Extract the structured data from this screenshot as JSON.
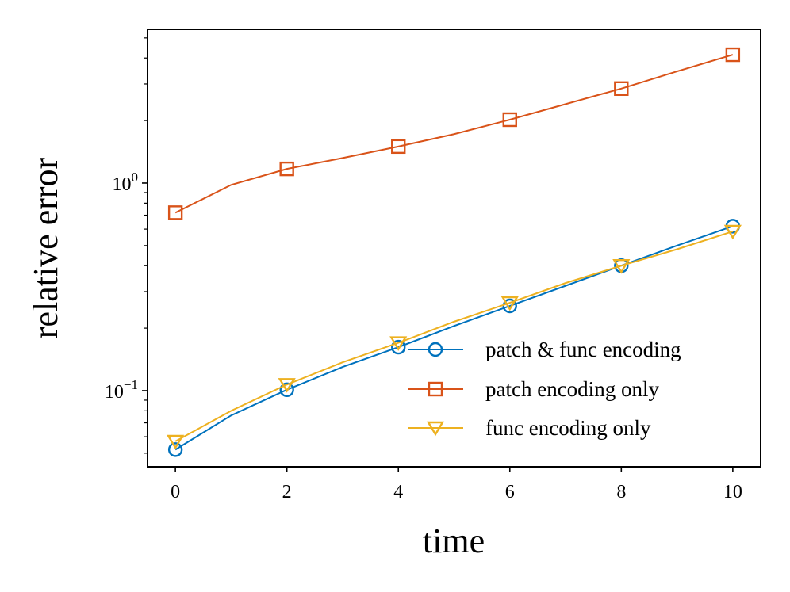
{
  "chart_data": {
    "type": "line",
    "title": "",
    "xlabel": "time",
    "ylabel": "relative error",
    "xscale": "linear",
    "yscale": "log",
    "xlim": [
      -0.5,
      10.5
    ],
    "ylim": [
      0.043,
      5.5
    ],
    "xticks": [
      0,
      2,
      4,
      6,
      8,
      10
    ],
    "xtick_labels": [
      "0",
      "2",
      "4",
      "6",
      "8",
      "10"
    ],
    "yticks_major": [
      {
        "value": 0.1,
        "base": "10",
        "exponent": "−1"
      },
      {
        "value": 1,
        "base": "10",
        "exponent": "0"
      }
    ],
    "grid": false,
    "legend_position": "lower-right",
    "x": [
      0,
      1,
      2,
      3,
      4,
      5,
      6,
      7,
      8,
      9,
      10
    ],
    "series": [
      {
        "name": "patch & func encoding",
        "color": "#0072bd",
        "marker": "circle",
        "marker_every": 2,
        "values": [
          0.052,
          0.076,
          0.101,
          0.13,
          0.162,
          0.205,
          0.256,
          0.32,
          0.4,
          0.5,
          0.62
        ]
      },
      {
        "name": "patch encoding only",
        "color": "#d95319",
        "marker": "square",
        "marker_every": 2,
        "values": [
          0.72,
          0.98,
          1.17,
          1.32,
          1.5,
          1.72,
          2.02,
          2.4,
          2.85,
          3.45,
          4.15
        ]
      },
      {
        "name": "func encoding only",
        "color": "#edb120",
        "marker": "triangle-down",
        "marker_every": 2,
        "values": [
          0.057,
          0.08,
          0.107,
          0.137,
          0.17,
          0.215,
          0.265,
          0.33,
          0.4,
          0.48,
          0.585
        ]
      }
    ]
  }
}
